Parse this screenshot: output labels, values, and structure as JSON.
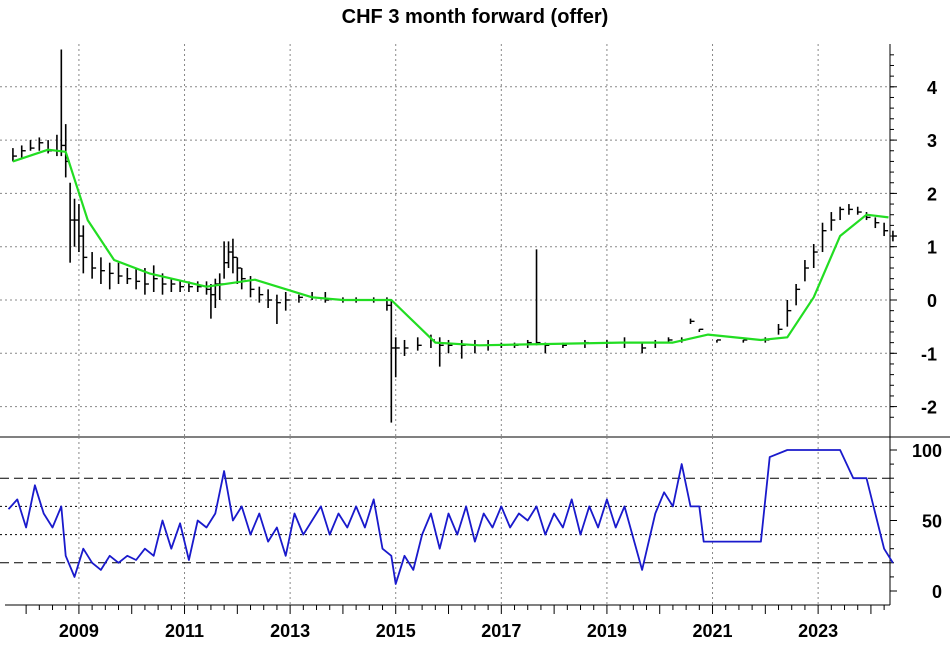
{
  "chart_data": [
    {
      "type": "bar",
      "subtype": "high-low-close with moving average",
      "title": "CHF 3 month forward (offer)",
      "ylim": [
        -2.3,
        4.85
      ],
      "yticks": [
        "4",
        "3",
        "2",
        "1",
        "0",
        "-1",
        "-2"
      ],
      "x_ticks": [
        "2009",
        "2011",
        "2013",
        "2015",
        "2017",
        "2019",
        "2021",
        "2023"
      ],
      "grid": true,
      "colors": {
        "bars": "#000000",
        "moving_average": "#22dd22"
      },
      "hlc": [
        [
          "2007-10",
          2.85,
          2.6,
          2.7
        ],
        [
          "2007-12",
          2.9,
          2.65,
          2.8
        ],
        [
          "2008-02",
          3.0,
          2.8,
          2.85
        ],
        [
          "2008-04",
          3.05,
          2.8,
          2.95
        ],
        [
          "2008-06",
          3.0,
          2.75,
          2.8
        ],
        [
          "2008-08",
          3.1,
          2.7,
          2.8
        ],
        [
          "2008-09",
          4.7,
          2.7,
          2.9
        ],
        [
          "2008-10",
          3.3,
          2.3,
          2.6
        ],
        [
          "2008-11",
          2.2,
          0.7,
          1.5
        ],
        [
          "2008-12",
          1.9,
          1.0,
          1.5
        ],
        [
          "2009-01",
          1.8,
          0.9,
          1.2
        ],
        [
          "2009-02",
          1.4,
          0.5,
          0.8
        ],
        [
          "2009-04",
          0.9,
          0.4,
          0.6
        ],
        [
          "2009-06",
          0.8,
          0.3,
          0.55
        ],
        [
          "2009-08",
          0.7,
          0.2,
          0.5
        ],
        [
          "2009-10",
          0.7,
          0.3,
          0.45
        ],
        [
          "2009-12",
          0.6,
          0.3,
          0.4
        ],
        [
          "2010-02",
          0.6,
          0.2,
          0.35
        ],
        [
          "2010-04",
          0.6,
          0.1,
          0.3
        ],
        [
          "2010-06",
          0.65,
          0.15,
          0.4
        ],
        [
          "2010-08",
          0.5,
          0.1,
          0.3
        ],
        [
          "2010-10",
          0.4,
          0.15,
          0.3
        ],
        [
          "2010-12",
          0.35,
          0.15,
          0.25
        ],
        [
          "2011-02",
          0.35,
          0.15,
          0.25
        ],
        [
          "2011-04",
          0.35,
          0.15,
          0.25
        ],
        [
          "2011-06",
          0.35,
          0.1,
          0.2
        ],
        [
          "2011-07",
          0.3,
          -0.35,
          0.1
        ],
        [
          "2011-08",
          0.4,
          -0.15,
          0.3
        ],
        [
          "2011-09",
          0.5,
          0.0,
          0.3
        ],
        [
          "2011-10",
          1.1,
          0.4,
          0.7
        ],
        [
          "2011-11",
          1.1,
          0.6,
          0.9
        ],
        [
          "2011-12",
          1.15,
          0.5,
          0.8
        ],
        [
          "2012-01",
          0.8,
          0.3,
          0.6
        ],
        [
          "2012-02",
          0.6,
          0.2,
          0.4
        ],
        [
          "2012-04",
          0.45,
          0.05,
          0.2
        ],
        [
          "2012-06",
          0.25,
          -0.05,
          0.1
        ],
        [
          "2012-08",
          0.2,
          -0.15,
          0.0
        ],
        [
          "2012-10",
          0.1,
          -0.45,
          -0.05
        ],
        [
          "2012-12",
          0.15,
          -0.2,
          0.0
        ],
        [
          "2013-03",
          0.1,
          -0.05,
          0.05
        ],
        [
          "2013-06",
          0.15,
          0.0,
          0.05
        ],
        [
          "2013-09",
          0.15,
          -0.05,
          0.0
        ],
        [
          "2014-01",
          0.05,
          -0.05,
          0.0
        ],
        [
          "2014-04",
          0.05,
          -0.05,
          0.0
        ],
        [
          "2014-08",
          0.05,
          -0.05,
          0.0
        ],
        [
          "2014-11",
          0.05,
          -0.2,
          -0.1
        ],
        [
          "2014-12",
          0.0,
          -2.3,
          -0.9
        ],
        [
          "2015-01",
          -0.7,
          -1.45,
          -0.9
        ],
        [
          "2015-03",
          -0.75,
          -1.05,
          -0.9
        ],
        [
          "2015-06",
          -0.7,
          -0.95,
          -0.85
        ],
        [
          "2015-09",
          -0.65,
          -0.9,
          -0.75
        ],
        [
          "2015-11",
          -0.7,
          -1.25,
          -0.85
        ],
        [
          "2016-01",
          -0.75,
          -1.0,
          -0.85
        ],
        [
          "2016-04",
          -0.75,
          -1.1,
          -0.85
        ],
        [
          "2016-07",
          -0.75,
          -1.0,
          -0.85
        ],
        [
          "2016-10",
          -0.75,
          -0.95,
          -0.85
        ],
        [
          "2017-01",
          -0.8,
          -0.9,
          -0.85
        ],
        [
          "2017-04",
          -0.8,
          -0.9,
          -0.85
        ],
        [
          "2017-07",
          -0.75,
          -0.9,
          -0.8
        ],
        [
          "2017-09",
          0.95,
          -0.85,
          -0.8
        ],
        [
          "2017-11",
          -0.8,
          -1.0,
          -0.85
        ],
        [
          "2018-03",
          -0.8,
          -0.9,
          -0.85
        ],
        [
          "2018-08",
          -0.75,
          -0.9,
          -0.8
        ],
        [
          "2019-01",
          -0.75,
          -0.9,
          -0.8
        ],
        [
          "2019-05",
          -0.7,
          -0.9,
          -0.8
        ],
        [
          "2019-09",
          -0.8,
          -1.0,
          -0.9
        ],
        [
          "2019-12",
          -0.75,
          -0.9,
          -0.8
        ],
        [
          "2020-03",
          -0.7,
          -0.8,
          -0.75
        ],
        [
          "2020-06",
          -0.7,
          -0.8,
          -0.75
        ],
        [
          "2020-08",
          -0.35,
          -0.45,
          -0.4
        ],
        [
          "2020-10",
          -0.55,
          -0.6,
          -0.55
        ],
        [
          "2021-02",
          -0.75,
          -0.8,
          -0.75
        ],
        [
          "2021-08",
          -0.75,
          -0.8,
          -0.75
        ],
        [
          "2022-01",
          -0.7,
          -0.8,
          -0.75
        ],
        [
          "2022-04",
          -0.45,
          -0.65,
          -0.55
        ],
        [
          "2022-06",
          0.0,
          -0.5,
          -0.2
        ],
        [
          "2022-08",
          0.3,
          -0.1,
          0.2
        ],
        [
          "2022-10",
          0.75,
          0.35,
          0.6
        ],
        [
          "2022-12",
          1.05,
          0.6,
          0.9
        ],
        [
          "2023-02",
          1.45,
          0.9,
          1.3
        ],
        [
          "2023-04",
          1.65,
          1.3,
          1.5
        ],
        [
          "2023-06",
          1.75,
          1.5,
          1.7
        ],
        [
          "2023-08",
          1.8,
          1.6,
          1.7
        ],
        [
          "2023-10",
          1.75,
          1.6,
          1.65
        ],
        [
          "2023-12",
          1.65,
          1.5,
          1.55
        ],
        [
          "2024-02",
          1.55,
          1.35,
          1.45
        ],
        [
          "2024-04",
          1.45,
          1.2,
          1.3
        ],
        [
          "2024-06",
          1.3,
          1.1,
          1.2
        ]
      ],
      "moving_average": [
        [
          "2007-10",
          2.6
        ],
        [
          "2008-06",
          2.82
        ],
        [
          "2008-10",
          2.78
        ],
        [
          "2009-03",
          1.5
        ],
        [
          "2009-09",
          0.75
        ],
        [
          "2010-05",
          0.5
        ],
        [
          "2011-06",
          0.25
        ],
        [
          "2012-05",
          0.38
        ],
        [
          "2013-06",
          0.05
        ],
        [
          "2014-01",
          0.0
        ],
        [
          "2014-12",
          0.0
        ],
        [
          "2015-10",
          -0.8
        ],
        [
          "2016-08",
          -0.85
        ],
        [
          "2019-04",
          -0.8
        ],
        [
          "2020-04",
          -0.8
        ],
        [
          "2020-12",
          -0.65
        ],
        [
          "2021-12",
          -0.75
        ],
        [
          "2022-06",
          -0.7
        ],
        [
          "2022-12",
          0.05
        ],
        [
          "2023-06",
          1.2
        ],
        [
          "2023-12",
          1.6
        ],
        [
          "2024-05",
          1.55
        ]
      ]
    },
    {
      "type": "line",
      "ylim": [
        -5,
        105
      ],
      "yticks": [
        "100",
        "50",
        "0"
      ],
      "reference_lines": {
        "dashed": [
          20,
          80
        ],
        "dotted": [
          40,
          60
        ]
      },
      "colors": {
        "line": "#1a1acc"
      },
      "points": [
        [
          "2007-09",
          58
        ],
        [
          "2007-11",
          65
        ],
        [
          "2008-01",
          45
        ],
        [
          "2008-03",
          75
        ],
        [
          "2008-05",
          55
        ],
        [
          "2008-07",
          45
        ],
        [
          "2008-09",
          60
        ],
        [
          "2008-10",
          25
        ],
        [
          "2008-12",
          10
        ],
        [
          "2009-02",
          30
        ],
        [
          "2009-04",
          20
        ],
        [
          "2009-06",
          15
        ],
        [
          "2009-08",
          25
        ],
        [
          "2009-10",
          20
        ],
        [
          "2009-12",
          25
        ],
        [
          "2010-02",
          22
        ],
        [
          "2010-04",
          30
        ],
        [
          "2010-06",
          25
        ],
        [
          "2010-08",
          50
        ],
        [
          "2010-10",
          30
        ],
        [
          "2010-12",
          48
        ],
        [
          "2011-02",
          22
        ],
        [
          "2011-04",
          50
        ],
        [
          "2011-06",
          45
        ],
        [
          "2011-08",
          55
        ],
        [
          "2011-10",
          85
        ],
        [
          "2011-12",
          50
        ],
        [
          "2012-02",
          60
        ],
        [
          "2012-04",
          40
        ],
        [
          "2012-06",
          55
        ],
        [
          "2012-08",
          35
        ],
        [
          "2012-10",
          45
        ],
        [
          "2012-12",
          25
        ],
        [
          "2013-02",
          55
        ],
        [
          "2013-04",
          40
        ],
        [
          "2013-06",
          50
        ],
        [
          "2013-08",
          60
        ],
        [
          "2013-10",
          40
        ],
        [
          "2013-12",
          55
        ],
        [
          "2014-02",
          45
        ],
        [
          "2014-04",
          60
        ],
        [
          "2014-06",
          45
        ],
        [
          "2014-08",
          65
        ],
        [
          "2014-10",
          30
        ],
        [
          "2014-12",
          25
        ],
        [
          "2015-01",
          5
        ],
        [
          "2015-03",
          25
        ],
        [
          "2015-05",
          15
        ],
        [
          "2015-07",
          40
        ],
        [
          "2015-09",
          55
        ],
        [
          "2015-11",
          30
        ],
        [
          "2016-01",
          55
        ],
        [
          "2016-03",
          40
        ],
        [
          "2016-05",
          60
        ],
        [
          "2016-07",
          35
        ],
        [
          "2016-09",
          55
        ],
        [
          "2016-11",
          45
        ],
        [
          "2017-01",
          60
        ],
        [
          "2017-03",
          45
        ],
        [
          "2017-05",
          55
        ],
        [
          "2017-07",
          50
        ],
        [
          "2017-09",
          60
        ],
        [
          "2017-11",
          40
        ],
        [
          "2018-01",
          55
        ],
        [
          "2018-03",
          45
        ],
        [
          "2018-05",
          65
        ],
        [
          "2018-07",
          40
        ],
        [
          "2018-09",
          60
        ],
        [
          "2018-11",
          45
        ],
        [
          "2019-01",
          65
        ],
        [
          "2019-03",
          45
        ],
        [
          "2019-05",
          60
        ],
        [
          "2019-09",
          15
        ],
        [
          "2019-12",
          55
        ],
        [
          "2020-02",
          70
        ],
        [
          "2020-04",
          60
        ],
        [
          "2020-06",
          90
        ],
        [
          "2020-08",
          60
        ],
        [
          "2020-10",
          60
        ],
        [
          "2020-11",
          35
        ],
        [
          "2021-06",
          35
        ],
        [
          "2021-12",
          35
        ],
        [
          "2022-02",
          95
        ],
        [
          "2022-06",
          100
        ],
        [
          "2023-06",
          100
        ],
        [
          "2023-09",
          80
        ],
        [
          "2023-12",
          80
        ],
        [
          "2024-02",
          55
        ],
        [
          "2024-04",
          30
        ],
        [
          "2024-06",
          20
        ]
      ]
    }
  ]
}
